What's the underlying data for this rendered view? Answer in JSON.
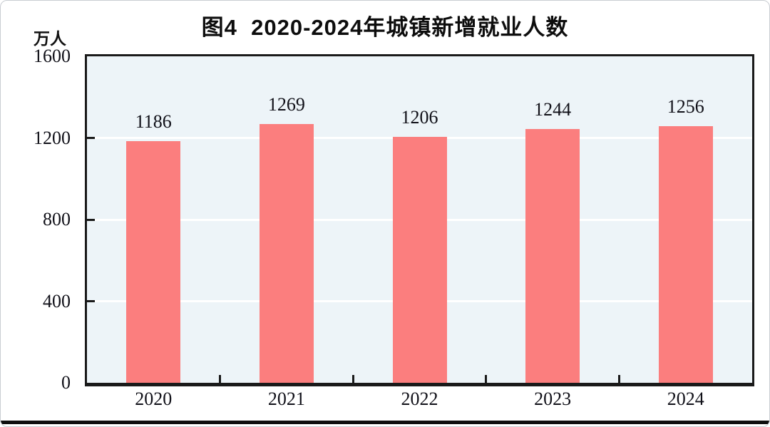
{
  "chart": {
    "title": "图4  2020-2024年城镇新增就业人数",
    "unit": "万人"
  },
  "chart_data": {
    "type": "bar",
    "title": "图4  2020-2024年城镇新增就业人数",
    "ylabel": "万人",
    "xlabel": "",
    "categories": [
      "2020",
      "2021",
      "2022",
      "2023",
      "2024"
    ],
    "values": [
      1186,
      1269,
      1206,
      1244,
      1256
    ],
    "ylim": [
      0,
      1600
    ],
    "yticks": [
      0,
      400,
      800,
      1200,
      1600
    ],
    "grid": "horizontal white gridlines at 400/800/1200",
    "legend": "none",
    "colors": {
      "bar": "#FB7E7E",
      "plot_background": "#EDF4F8",
      "axis": "#1a1a1a",
      "gridline": "#ffffff",
      "text": "#101018",
      "footer_rule": "#0e0e0e",
      "outer_border": "#c9cdd2"
    }
  }
}
